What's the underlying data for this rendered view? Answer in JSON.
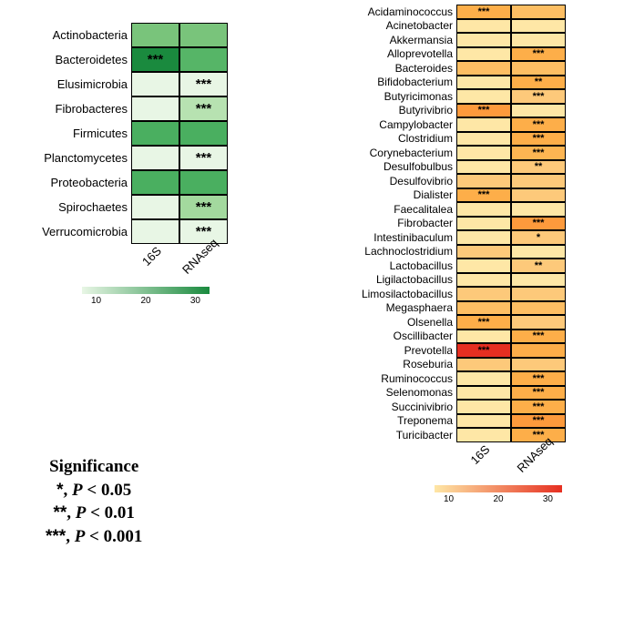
{
  "left": {
    "columns": [
      "16S",
      "RNAseq"
    ],
    "rows": [
      {
        "label": "Actinobacteria",
        "cells": [
          {
            "c": "#79c47b",
            "s": ""
          },
          {
            "c": "#79c47b",
            "s": ""
          }
        ]
      },
      {
        "label": "Bacteroidetes",
        "cells": [
          {
            "c": "#1a8a3e",
            "s": "***"
          },
          {
            "c": "#56b567",
            "s": ""
          }
        ]
      },
      {
        "label": "Elusimicrobia",
        "cells": [
          {
            "c": "#e8f6e5",
            "s": ""
          },
          {
            "c": "#e8f6e5",
            "s": "***"
          }
        ]
      },
      {
        "label": "Fibrobacteres",
        "cells": [
          {
            "c": "#e8f6e5",
            "s": ""
          },
          {
            "c": "#b7e2b1",
            "s": "***"
          }
        ]
      },
      {
        "label": "Firmicutes",
        "cells": [
          {
            "c": "#4aaf60",
            "s": ""
          },
          {
            "c": "#4aaf60",
            "s": ""
          }
        ]
      },
      {
        "label": "Planctomycetes",
        "cells": [
          {
            "c": "#e8f6e5",
            "s": ""
          },
          {
            "c": "#e8f6e5",
            "s": "***"
          }
        ]
      },
      {
        "label": "Proteobacteria",
        "cells": [
          {
            "c": "#4aaf60",
            "s": ""
          },
          {
            "c": "#4aaf60",
            "s": ""
          }
        ]
      },
      {
        "label": "Spirochaetes",
        "cells": [
          {
            "c": "#e8f6e5",
            "s": ""
          },
          {
            "c": "#a3d99e",
            "s": "***"
          }
        ]
      },
      {
        "label": "Verrucomicrobia",
        "cells": [
          {
            "c": "#e8f6e5",
            "s": ""
          },
          {
            "c": "#e8f6e5",
            "s": "***"
          }
        ]
      }
    ],
    "cb": {
      "start": "#e8f6e5",
      "end": "#1a8a3e",
      "ticks": [
        "10",
        "20",
        "30"
      ]
    }
  },
  "right": {
    "columns": [
      "16S",
      "RNAseq"
    ],
    "rows": [
      {
        "label": "Acidaminococcus",
        "cells": [
          {
            "c": "#fdae49",
            "s": "***"
          },
          {
            "c": "#fdbe63",
            "s": ""
          }
        ]
      },
      {
        "label": "Acinetobacter",
        "cells": [
          {
            "c": "#fee7a6",
            "s": ""
          },
          {
            "c": "#fee7a6",
            "s": ""
          }
        ]
      },
      {
        "label": "Akkermansia",
        "cells": [
          {
            "c": "#fee7a6",
            "s": ""
          },
          {
            "c": "#fee7a6",
            "s": ""
          }
        ]
      },
      {
        "label": "Alloprevotella",
        "cells": [
          {
            "c": "#fee7a6",
            "s": ""
          },
          {
            "c": "#fdae49",
            "s": "***"
          }
        ]
      },
      {
        "label": "Bacteroides",
        "cells": [
          {
            "c": "#fdbe63",
            "s": ""
          },
          {
            "c": "#fdbe63",
            "s": ""
          }
        ]
      },
      {
        "label": "Bifidobacterium",
        "cells": [
          {
            "c": "#fee7a6",
            "s": ""
          },
          {
            "c": "#fdae49",
            "s": "**"
          }
        ]
      },
      {
        "label": "Butyricimonas",
        "cells": [
          {
            "c": "#fee7a6",
            "s": ""
          },
          {
            "c": "#fdc97a",
            "s": "***"
          }
        ]
      },
      {
        "label": "Butyrivibrio",
        "cells": [
          {
            "c": "#fd9a3c",
            "s": "***"
          },
          {
            "c": "#fee7a6",
            "s": ""
          }
        ]
      },
      {
        "label": "Campylobacter",
        "cells": [
          {
            "c": "#fee7a6",
            "s": ""
          },
          {
            "c": "#fdae49",
            "s": "***"
          }
        ]
      },
      {
        "label": "Clostridium",
        "cells": [
          {
            "c": "#fee7a6",
            "s": ""
          },
          {
            "c": "#fdae49",
            "s": "***"
          }
        ]
      },
      {
        "label": "Corynebacterium",
        "cells": [
          {
            "c": "#fee7a6",
            "s": ""
          },
          {
            "c": "#fdb552",
            "s": "***"
          }
        ]
      },
      {
        "label": "Desulfobulbus",
        "cells": [
          {
            "c": "#fee7a6",
            "s": ""
          },
          {
            "c": "#fdc97a",
            "s": "**"
          }
        ]
      },
      {
        "label": "Desulfovibrio",
        "cells": [
          {
            "c": "#fdc97a",
            "s": ""
          },
          {
            "c": "#fdc97a",
            "s": ""
          }
        ]
      },
      {
        "label": "Dialister",
        "cells": [
          {
            "c": "#fdae49",
            "s": "***"
          },
          {
            "c": "#fdc97a",
            "s": ""
          }
        ]
      },
      {
        "label": "Faecalitalea",
        "cells": [
          {
            "c": "#fee7a6",
            "s": ""
          },
          {
            "c": "#fee7a6",
            "s": ""
          }
        ]
      },
      {
        "label": "Fibrobacter",
        "cells": [
          {
            "c": "#fee7a6",
            "s": ""
          },
          {
            "c": "#fd9a3c",
            "s": "***"
          }
        ]
      },
      {
        "label": "Intestinibaculum",
        "cells": [
          {
            "c": "#fee7a6",
            "s": ""
          },
          {
            "c": "#fdc97a",
            "s": "*"
          }
        ]
      },
      {
        "label": "Lachnoclostridium",
        "cells": [
          {
            "c": "#fdc97a",
            "s": ""
          },
          {
            "c": "#fee7a6",
            "s": ""
          }
        ]
      },
      {
        "label": "Lactobacillus",
        "cells": [
          {
            "c": "#fee7a6",
            "s": ""
          },
          {
            "c": "#fdc97a",
            "s": "**"
          }
        ]
      },
      {
        "label": "Ligilactobacillus",
        "cells": [
          {
            "c": "#fee7a6",
            "s": ""
          },
          {
            "c": "#fee7a6",
            "s": ""
          }
        ]
      },
      {
        "label": "Limosilactobacillus",
        "cells": [
          {
            "c": "#fdc97a",
            "s": ""
          },
          {
            "c": "#fdc97a",
            "s": ""
          }
        ]
      },
      {
        "label": "Megasphaera",
        "cells": [
          {
            "c": "#fdbe63",
            "s": ""
          },
          {
            "c": "#fdbe63",
            "s": ""
          }
        ]
      },
      {
        "label": "Olsenella",
        "cells": [
          {
            "c": "#fdae49",
            "s": "***"
          },
          {
            "c": "#fdc97a",
            "s": ""
          }
        ]
      },
      {
        "label": "Oscillibacter",
        "cells": [
          {
            "c": "#fee7a6",
            "s": ""
          },
          {
            "c": "#fdae49",
            "s": "***"
          }
        ]
      },
      {
        "label": "Prevotella",
        "cells": [
          {
            "c": "#e62f21",
            "s": "***"
          },
          {
            "c": "#fdae49",
            "s": ""
          }
        ]
      },
      {
        "label": "Roseburia",
        "cells": [
          {
            "c": "#fdc97a",
            "s": ""
          },
          {
            "c": "#fdc97a",
            "s": ""
          }
        ]
      },
      {
        "label": "Ruminococcus",
        "cells": [
          {
            "c": "#fee7a6",
            "s": ""
          },
          {
            "c": "#fdae49",
            "s": "***"
          }
        ]
      },
      {
        "label": "Selenomonas",
        "cells": [
          {
            "c": "#fee7a6",
            "s": ""
          },
          {
            "c": "#fdae49",
            "s": "***"
          }
        ]
      },
      {
        "label": "Succinivibrio",
        "cells": [
          {
            "c": "#fee7a6",
            "s": ""
          },
          {
            "c": "#fdae49",
            "s": "***"
          }
        ]
      },
      {
        "label": "Treponema",
        "cells": [
          {
            "c": "#fee7a6",
            "s": ""
          },
          {
            "c": "#fd9a3c",
            "s": "***"
          }
        ]
      },
      {
        "label": "Turicibacter",
        "cells": [
          {
            "c": "#fee7a6",
            "s": ""
          },
          {
            "c": "#fdae49",
            "s": "***"
          }
        ]
      }
    ],
    "cb": {
      "start": "#fee7a6",
      "end": "#e62f21",
      "ticks": [
        "10",
        "20",
        "30"
      ]
    }
  },
  "sig": {
    "title": "Significance",
    "l1": "*, P < 0.05",
    "l2": "**, P < 0.01",
    "l3": "***, P < 0.001"
  }
}
